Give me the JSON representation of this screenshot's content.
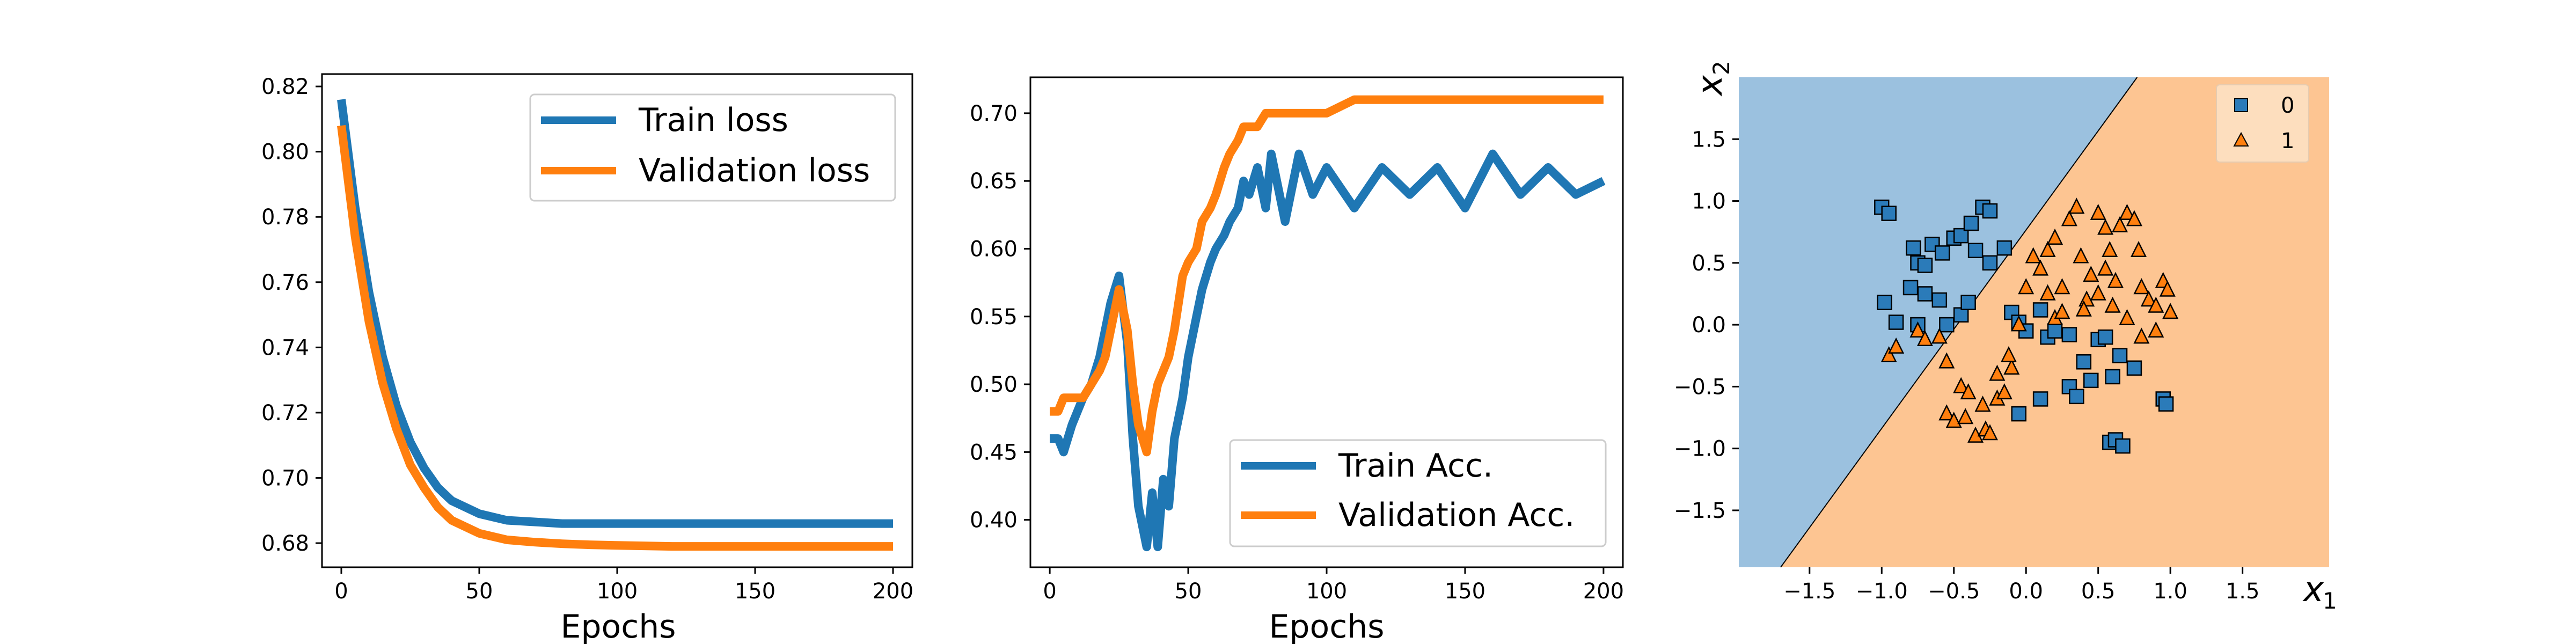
{
  "chart_data": [
    {
      "type": "line",
      "xlabel": "Epochs",
      "ylabel": "",
      "xlim": [
        -7,
        207
      ],
      "ylim": [
        0.6726,
        0.8238
      ],
      "xticks": [
        0,
        50,
        100,
        150,
        200
      ],
      "yticks": [
        0.68,
        0.7,
        0.72,
        0.74,
        0.76,
        0.78,
        0.8,
        0.82
      ],
      "x": [
        0,
        5,
        10,
        15,
        20,
        25,
        30,
        35,
        40,
        50,
        60,
        70,
        80,
        90,
        100,
        120,
        140,
        160,
        180,
        200
      ],
      "series": [
        {
          "name": "Train loss",
          "color": "#1f77b4",
          "values": [
            0.816,
            0.783,
            0.757,
            0.737,
            0.722,
            0.711,
            0.703,
            0.697,
            0.693,
            0.689,
            0.687,
            0.6865,
            0.686,
            0.686,
            0.686,
            0.686,
            0.686,
            0.686,
            0.686,
            0.686
          ]
        },
        {
          "name": "Validation loss",
          "color": "#ff7f0e",
          "values": [
            0.808,
            0.774,
            0.748,
            0.729,
            0.715,
            0.704,
            0.697,
            0.691,
            0.687,
            0.683,
            0.681,
            0.6803,
            0.6798,
            0.6795,
            0.6793,
            0.679,
            0.679,
            0.679,
            0.679,
            0.679
          ]
        }
      ],
      "legend": {
        "placement": "upper-right",
        "entries": [
          "Train loss",
          "Validation loss"
        ]
      },
      "grid": false
    },
    {
      "type": "line",
      "xlabel": "Epochs",
      "ylabel": "",
      "xlim": [
        -7,
        207
      ],
      "ylim": [
        0.365,
        0.7265
      ],
      "xticks": [
        0,
        50,
        100,
        150,
        200
      ],
      "yticks": [
        0.4,
        0.45,
        0.5,
        0.55,
        0.6,
        0.65,
        0.7
      ],
      "x": [
        0,
        3,
        5,
        8,
        12,
        15,
        18,
        20,
        22,
        25,
        28,
        30,
        32,
        35,
        37,
        39,
        41,
        43,
        45,
        48,
        50,
        53,
        55,
        58,
        60,
        63,
        65,
        68,
        70,
        72,
        75,
        78,
        80,
        85,
        90,
        95,
        100,
        110,
        120,
        130,
        140,
        150,
        160,
        170,
        180,
        190,
        200
      ],
      "series": [
        {
          "name": "Train Acc.",
          "color": "#1f77b4",
          "values": [
            0.46,
            0.46,
            0.45,
            0.47,
            0.49,
            0.5,
            0.52,
            0.54,
            0.56,
            0.58,
            0.53,
            0.46,
            0.41,
            0.38,
            0.42,
            0.38,
            0.43,
            0.41,
            0.46,
            0.49,
            0.52,
            0.55,
            0.57,
            0.59,
            0.6,
            0.61,
            0.62,
            0.63,
            0.65,
            0.64,
            0.66,
            0.63,
            0.67,
            0.62,
            0.67,
            0.64,
            0.66,
            0.63,
            0.66,
            0.64,
            0.66,
            0.63,
            0.67,
            0.64,
            0.66,
            0.64,
            0.65
          ]
        },
        {
          "name": "Validation Acc.",
          "color": "#ff7f0e",
          "values": [
            0.48,
            0.48,
            0.49,
            0.49,
            0.49,
            0.5,
            0.51,
            0.52,
            0.54,
            0.57,
            0.54,
            0.5,
            0.47,
            0.45,
            0.48,
            0.5,
            0.51,
            0.52,
            0.54,
            0.58,
            0.59,
            0.6,
            0.62,
            0.63,
            0.64,
            0.66,
            0.67,
            0.68,
            0.69,
            0.69,
            0.69,
            0.7,
            0.7,
            0.7,
            0.7,
            0.7,
            0.7,
            0.71,
            0.71,
            0.71,
            0.71,
            0.71,
            0.71,
            0.71,
            0.71,
            0.71,
            0.71
          ]
        }
      ],
      "legend": {
        "placement": "lower-right",
        "entries": [
          "Train Acc.",
          "Validation Acc."
        ]
      },
      "grid": false
    },
    {
      "type": "scatter",
      "xlabel": "x1",
      "ylabel": "x2",
      "xlim": [
        -1.99,
        2.1
      ],
      "ylim": [
        -1.96,
        2.0
      ],
      "xticks": [
        -1.5,
        -1.0,
        -0.5,
        0.0,
        0.5,
        1.0,
        1.5
      ],
      "yticks": [
        -1.5,
        -1.0,
        -0.5,
        0.0,
        0.5,
        1.0,
        1.5
      ],
      "decision_boundary": {
        "points": [
          [
            -1.7,
            -1.96
          ],
          [
            0.77,
            2.0
          ]
        ],
        "region_colors": {
          "0": "#9bc1df",
          "1": "#fdc592"
        }
      },
      "classes": [
        {
          "label": "0",
          "marker": "square",
          "color": "#2b7bb9",
          "points": [
            [
              -1.0,
              0.95
            ],
            [
              -0.95,
              0.9
            ],
            [
              -0.78,
              0.62
            ],
            [
              -0.75,
              0.5
            ],
            [
              -0.7,
              0.48
            ],
            [
              -0.65,
              0.65
            ],
            [
              -0.58,
              0.58
            ],
            [
              -0.5,
              0.7
            ],
            [
              -0.45,
              0.72
            ],
            [
              -0.38,
              0.82
            ],
            [
              -0.3,
              0.95
            ],
            [
              -0.25,
              0.92
            ],
            [
              -0.35,
              0.6
            ],
            [
              -0.25,
              0.5
            ],
            [
              -0.15,
              0.62
            ],
            [
              -0.98,
              0.18
            ],
            [
              -0.9,
              0.02
            ],
            [
              -0.8,
              0.3
            ],
            [
              -0.75,
              0.0
            ],
            [
              -0.7,
              0.25
            ],
            [
              -0.6,
              0.2
            ],
            [
              -0.55,
              0.0
            ],
            [
              -0.45,
              0.08
            ],
            [
              -0.4,
              0.18
            ],
            [
              -0.1,
              0.1
            ],
            [
              -0.05,
              0.02
            ],
            [
              0.1,
              0.12
            ],
            [
              0.0,
              -0.05
            ],
            [
              0.15,
              -0.1
            ],
            [
              0.2,
              -0.05
            ],
            [
              0.3,
              -0.08
            ],
            [
              0.5,
              -0.12
            ],
            [
              0.55,
              -0.1
            ],
            [
              0.65,
              -0.25
            ],
            [
              0.75,
              -0.35
            ],
            [
              0.4,
              -0.3
            ],
            [
              0.45,
              -0.45
            ],
            [
              0.6,
              -0.42
            ],
            [
              0.3,
              -0.5
            ],
            [
              0.1,
              -0.6
            ],
            [
              -0.05,
              -0.72
            ],
            [
              0.35,
              -0.58
            ],
            [
              0.58,
              -0.95
            ],
            [
              0.62,
              -0.93
            ],
            [
              0.67,
              -0.98
            ],
            [
              0.95,
              -0.6
            ],
            [
              0.97,
              -0.64
            ]
          ]
        },
        {
          "label": "1",
          "marker": "triangle",
          "color": "#ff7f0e",
          "points": [
            [
              -0.95,
              -0.25
            ],
            [
              -0.9,
              -0.18
            ],
            [
              -0.75,
              -0.05
            ],
            [
              -0.7,
              -0.12
            ],
            [
              -0.6,
              -0.1
            ],
            [
              -0.55,
              -0.3
            ],
            [
              -0.45,
              -0.5
            ],
            [
              -0.4,
              -0.55
            ],
            [
              -0.55,
              -0.72
            ],
            [
              -0.5,
              -0.78
            ],
            [
              -0.42,
              -0.75
            ],
            [
              -0.35,
              -0.9
            ],
            [
              -0.28,
              -0.85
            ],
            [
              -0.25,
              -0.88
            ],
            [
              -0.3,
              -0.65
            ],
            [
              -0.2,
              -0.6
            ],
            [
              -0.15,
              -0.55
            ],
            [
              -0.2,
              -0.4
            ],
            [
              -0.1,
              -0.35
            ],
            [
              -0.12,
              -0.25
            ],
            [
              -0.05,
              0.0
            ],
            [
              0.0,
              0.3
            ],
            [
              0.05,
              0.55
            ],
            [
              0.1,
              0.45
            ],
            [
              0.15,
              0.6
            ],
            [
              0.2,
              0.7
            ],
            [
              0.25,
              0.3
            ],
            [
              0.3,
              0.85
            ],
            [
              0.35,
              0.95
            ],
            [
              0.38,
              0.55
            ],
            [
              0.42,
              0.2
            ],
            [
              0.45,
              0.4
            ],
            [
              0.5,
              0.9
            ],
            [
              0.55,
              0.78
            ],
            [
              0.58,
              0.6
            ],
            [
              0.62,
              0.35
            ],
            [
              0.65,
              0.8
            ],
            [
              0.7,
              0.9
            ],
            [
              0.75,
              0.85
            ],
            [
              0.78,
              0.6
            ],
            [
              0.8,
              0.3
            ],
            [
              0.85,
              0.2
            ],
            [
              0.9,
              0.15
            ],
            [
              0.95,
              0.35
            ],
            [
              0.98,
              0.28
            ],
            [
              1.0,
              0.1
            ],
            [
              0.6,
              0.15
            ],
            [
              0.7,
              0.05
            ],
            [
              0.4,
              0.12
            ],
            [
              0.2,
              0.05
            ],
            [
              0.15,
              0.25
            ],
            [
              0.25,
              0.1
            ],
            [
              0.5,
              0.25
            ],
            [
              0.55,
              0.45
            ],
            [
              0.8,
              -0.1
            ],
            [
              0.9,
              -0.05
            ]
          ]
        }
      ],
      "legend": {
        "placement": "upper-right",
        "entries": [
          "0",
          "1"
        ]
      },
      "grid": false
    }
  ],
  "colors": {
    "train": "#1f77b4",
    "validation": "#ff7f0e",
    "region_class0": "#9bc1df",
    "region_class1": "#fdc592"
  }
}
